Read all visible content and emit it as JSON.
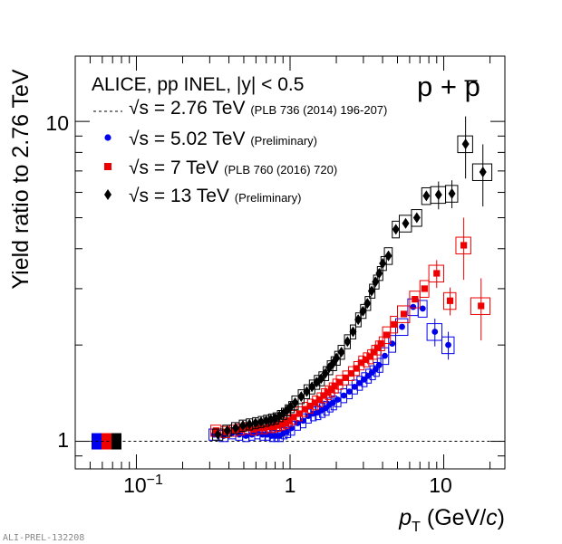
{
  "chart_data": {
    "type": "scatter",
    "title": "ALICE, pp INEL, |y| < 0.5",
    "particle_label": "p + p̄",
    "xlabel": "p_T (GeV/c)",
    "ylabel": "Yield ratio to 2.76 TeV",
    "x_scale": "log",
    "y_scale": "log",
    "xlim": [
      0.04,
      25
    ],
    "ylim": [
      0.82,
      16
    ],
    "x_tick_labels": [
      "10^-1",
      "1",
      "10"
    ],
    "y_tick_labels": [
      "1",
      "10"
    ],
    "watermark": "ALI-PREL-132208",
    "colors": {
      "s276": "#000000",
      "s502": "#0000ee",
      "s7": "#ee0000",
      "s13": "#000000"
    },
    "series": [
      {
        "key": "s276",
        "name": "√s = 2.76 TeV",
        "note": "(PLB 736 (2014) 196-207)",
        "marker": "dashed-line",
        "values": [
          [
            0.05,
            1.0
          ],
          [
            25,
            1.0
          ]
        ]
      },
      {
        "key": "s502",
        "name": "√s = 5.02 TeV",
        "note": "(Preliminary)",
        "marker": "circle",
        "values": [
          [
            0.33,
            1.05
          ],
          [
            0.38,
            1.04
          ],
          [
            0.43,
            1.06
          ],
          [
            0.48,
            1.05
          ],
          [
            0.53,
            1.04
          ],
          [
            0.58,
            1.05
          ],
          [
            0.63,
            1.06
          ],
          [
            0.68,
            1.05
          ],
          [
            0.73,
            1.05
          ],
          [
            0.78,
            1.04
          ],
          [
            0.83,
            1.04
          ],
          [
            0.88,
            1.04
          ],
          [
            0.93,
            1.06
          ],
          [
            0.98,
            1.07
          ],
          [
            1.05,
            1.1
          ],
          [
            1.15,
            1.14
          ],
          [
            1.25,
            1.16
          ],
          [
            1.35,
            1.2
          ],
          [
            1.45,
            1.22
          ],
          [
            1.55,
            1.23
          ],
          [
            1.65,
            1.25
          ],
          [
            1.75,
            1.27
          ],
          [
            1.85,
            1.3
          ],
          [
            1.95,
            1.32
          ],
          [
            2.1,
            1.35
          ],
          [
            2.3,
            1.39
          ],
          [
            2.5,
            1.43
          ],
          [
            2.7,
            1.48
          ],
          [
            2.9,
            1.52
          ],
          [
            3.1,
            1.56
          ],
          [
            3.3,
            1.6
          ],
          [
            3.5,
            1.64
          ],
          [
            3.7,
            1.68
          ],
          [
            3.9,
            1.73
          ],
          [
            4.25,
            1.85
          ],
          [
            4.75,
            2.02
          ],
          [
            5.5,
            2.28
          ],
          [
            6.5,
            2.63
          ],
          [
            7.5,
            2.6
          ],
          [
            9.0,
            2.2
          ],
          [
            11.0,
            2.0
          ]
        ]
      },
      {
        "key": "s7",
        "name": "√s = 7 TeV",
        "note": "(PLB 760 (2016) 720)",
        "marker": "square",
        "values": [
          [
            0.33,
            1.08
          ],
          [
            0.38,
            1.07
          ],
          [
            0.43,
            1.08
          ],
          [
            0.48,
            1.09
          ],
          [
            0.53,
            1.1
          ],
          [
            0.58,
            1.09
          ],
          [
            0.63,
            1.1
          ],
          [
            0.68,
            1.1
          ],
          [
            0.73,
            1.11
          ],
          [
            0.78,
            1.11
          ],
          [
            0.83,
            1.12
          ],
          [
            0.88,
            1.13
          ],
          [
            0.93,
            1.14
          ],
          [
            0.98,
            1.16
          ],
          [
            1.05,
            1.19
          ],
          [
            1.15,
            1.22
          ],
          [
            1.25,
            1.26
          ],
          [
            1.35,
            1.29
          ],
          [
            1.45,
            1.32
          ],
          [
            1.55,
            1.35
          ],
          [
            1.65,
            1.39
          ],
          [
            1.75,
            1.42
          ],
          [
            1.85,
            1.45
          ],
          [
            1.95,
            1.49
          ],
          [
            2.1,
            1.53
          ],
          [
            2.3,
            1.58
          ],
          [
            2.5,
            1.63
          ],
          [
            2.7,
            1.69
          ],
          [
            2.9,
            1.76
          ],
          [
            3.1,
            1.8
          ],
          [
            3.3,
            1.84
          ],
          [
            3.5,
            1.9
          ],
          [
            3.7,
            1.96
          ],
          [
            3.9,
            2.02
          ],
          [
            4.25,
            2.15
          ],
          [
            4.75,
            2.32
          ],
          [
            5.5,
            2.5
          ],
          [
            6.5,
            2.78
          ],
          [
            7.5,
            3.0
          ],
          [
            9.0,
            3.35
          ],
          [
            11.0,
            2.75
          ],
          [
            13.5,
            4.1
          ],
          [
            17.5,
            2.65
          ]
        ]
      },
      {
        "key": "s13",
        "name": "√s = 13 TeV",
        "note": "(Preliminary)",
        "marker": "diamond",
        "values": [
          [
            0.33,
            1.05
          ],
          [
            0.38,
            1.08
          ],
          [
            0.43,
            1.1
          ],
          [
            0.48,
            1.12
          ],
          [
            0.53,
            1.13
          ],
          [
            0.58,
            1.14
          ],
          [
            0.63,
            1.15
          ],
          [
            0.68,
            1.16
          ],
          [
            0.73,
            1.17
          ],
          [
            0.78,
            1.18
          ],
          [
            0.83,
            1.2
          ],
          [
            0.88,
            1.22
          ],
          [
            0.93,
            1.25
          ],
          [
            0.98,
            1.28
          ],
          [
            1.05,
            1.32
          ],
          [
            1.15,
            1.38
          ],
          [
            1.25,
            1.43
          ],
          [
            1.35,
            1.48
          ],
          [
            1.45,
            1.53
          ],
          [
            1.55,
            1.57
          ],
          [
            1.65,
            1.63
          ],
          [
            1.75,
            1.7
          ],
          [
            1.85,
            1.75
          ],
          [
            1.95,
            1.82
          ],
          [
            2.1,
            1.9
          ],
          [
            2.3,
            2.05
          ],
          [
            2.5,
            2.2
          ],
          [
            2.7,
            2.4
          ],
          [
            2.9,
            2.55
          ],
          [
            3.1,
            2.7
          ],
          [
            3.3,
            2.95
          ],
          [
            3.5,
            3.15
          ],
          [
            3.7,
            3.35
          ],
          [
            3.9,
            3.6
          ],
          [
            4.25,
            3.8
          ],
          [
            4.75,
            4.6
          ],
          [
            5.5,
            4.8
          ],
          [
            6.5,
            5.0
          ],
          [
            7.5,
            5.85
          ],
          [
            9.0,
            5.9
          ],
          [
            11.0,
            5.95
          ],
          [
            13.5,
            8.5
          ],
          [
            17.5,
            6.95
          ]
        ]
      }
    ],
    "normalization_box_colors": [
      "#0000ee",
      "#ee0000",
      "#000000"
    ]
  }
}
